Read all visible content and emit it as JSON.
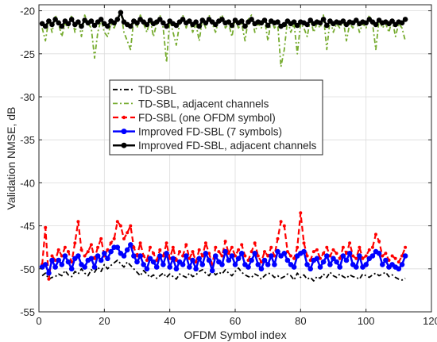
{
  "chart_data": {
    "type": "line",
    "xlabel": "OFDM Symbol index",
    "ylabel": "Validation NMSE, dB",
    "xlim": [
      0,
      120
    ],
    "ylim": [
      -55,
      -19.3
    ],
    "xticks": [
      0,
      20,
      40,
      60,
      80,
      100,
      120
    ],
    "yticks": [
      -55,
      -50,
      -45,
      -40,
      -35,
      -30,
      -25,
      -20
    ],
    "xtick_labels": [
      "0",
      "20",
      "40",
      "60",
      "80",
      "100",
      "120"
    ],
    "ytick_labels": [
      "-55",
      "-50",
      "-45",
      "-40",
      "-35",
      "-30",
      "-25",
      "-20"
    ],
    "grid": true,
    "legend_position": "center",
    "series": [
      {
        "name": "TD-SBL",
        "color": "#000000",
        "style": "dash-dot",
        "marker": "none",
        "x": [
          1,
          2,
          3,
          4,
          5,
          6,
          7,
          8,
          9,
          10,
          11,
          12,
          13,
          14,
          15,
          16,
          17,
          18,
          19,
          20,
          21,
          22,
          23,
          24,
          25,
          26,
          27,
          28,
          29,
          30,
          31,
          32,
          33,
          34,
          35,
          36,
          37,
          38,
          39,
          40,
          41,
          42,
          43,
          44,
          45,
          46,
          47,
          48,
          49,
          50,
          51,
          52,
          53,
          54,
          55,
          56,
          57,
          58,
          59,
          60,
          61,
          62,
          63,
          64,
          65,
          66,
          67,
          68,
          69,
          70,
          71,
          72,
          73,
          74,
          75,
          76,
          77,
          78,
          79,
          80,
          81,
          82,
          83,
          84,
          85,
          86,
          87,
          88,
          89,
          90,
          91,
          92,
          93,
          94,
          95,
          96,
          97,
          98,
          99,
          100,
          101,
          102,
          103,
          104,
          105,
          106,
          107,
          108,
          109,
          110,
          111,
          112
        ],
        "y": [
          -50.8,
          -50.5,
          -51.2,
          -51.0,
          -50.9,
          -50.6,
          -50.8,
          -50.2,
          -50.7,
          -50.9,
          -50.3,
          -50.6,
          -50.0,
          -50.5,
          -50.8,
          -50.1,
          -50.4,
          -49.8,
          -50.3,
          -49.5,
          -50.0,
          -49.6,
          -49.3,
          -49.0,
          -49.4,
          -49.8,
          -49.2,
          -49.6,
          -50.0,
          -50.4,
          -50.8,
          -50.2,
          -50.6,
          -51.0,
          -50.7,
          -51.1,
          -50.8,
          -50.5,
          -51.0,
          -50.6,
          -50.9,
          -51.2,
          -50.6,
          -50.8,
          -51.0,
          -50.5,
          -50.9,
          -50.7,
          -50.3,
          -50.1,
          -50.5,
          -50.8,
          -50.2,
          -50.7,
          -50.4,
          -50.6,
          -50.1,
          -50.5,
          -50.8,
          -50.3,
          -49.9,
          -50.4,
          -50.7,
          -50.9,
          -51.0,
          -50.6,
          -50.8,
          -51.2,
          -50.8,
          -50.5,
          -50.6,
          -51.0,
          -50.8,
          -51.1,
          -50.9,
          -50.6,
          -50.8,
          -51.3,
          -50.5,
          -51.0,
          -50.7,
          -51.2,
          -51.0,
          -51.4,
          -50.9,
          -51.1,
          -50.6,
          -51.0,
          -50.4,
          -50.8,
          -51.0,
          -50.6,
          -50.9,
          -51.1,
          -50.7,
          -50.9,
          -51.0,
          -51.2,
          -50.6,
          -50.8,
          -51.0,
          -50.7,
          -50.5,
          -50.8,
          -50.6,
          -50.4,
          -50.9,
          -50.7,
          -51.0,
          -51.2,
          -51.3,
          -51.1
        ]
      },
      {
        "name": "TD-SBL, adjacent channels",
        "color": "#77ac30",
        "style": "dash-dot",
        "marker": "none",
        "x": [
          1,
          2,
          3,
          4,
          5,
          6,
          7,
          8,
          9,
          10,
          11,
          12,
          13,
          14,
          15,
          16,
          17,
          18,
          19,
          20,
          21,
          22,
          23,
          24,
          25,
          26,
          27,
          28,
          29,
          30,
          31,
          32,
          33,
          34,
          35,
          36,
          37,
          38,
          39,
          40,
          41,
          42,
          43,
          44,
          45,
          46,
          47,
          48,
          49,
          50,
          51,
          52,
          53,
          54,
          55,
          56,
          57,
          58,
          59,
          60,
          61,
          62,
          63,
          64,
          65,
          66,
          67,
          68,
          69,
          70,
          71,
          72,
          73,
          74,
          75,
          76,
          77,
          78,
          79,
          80,
          81,
          82,
          83,
          84,
          85,
          86,
          87,
          88,
          89,
          90,
          91,
          92,
          93,
          94,
          95,
          96,
          97,
          98,
          99,
          100,
          101,
          102,
          103,
          104,
          105,
          106,
          107,
          108,
          109,
          110,
          111,
          112
        ],
        "y": [
          -22.0,
          -23.5,
          -21.0,
          -22.5,
          -20.5,
          -21.5,
          -23.0,
          -21.5,
          -22.0,
          -20.5,
          -22.5,
          -21.0,
          -23.0,
          -20.5,
          -21.5,
          -22.0,
          -25.5,
          -22.5,
          -21.0,
          -22.5,
          -23.0,
          -21.5,
          -22.0,
          -21.0,
          -20.0,
          -22.5,
          -23.5,
          -24.5,
          -21.0,
          -22.0,
          -20.5,
          -21.5,
          -22.5,
          -21.0,
          -23.0,
          -21.5,
          -20.5,
          -22.0,
          -26.0,
          -21.0,
          -22.5,
          -24.0,
          -21.5,
          -20.5,
          -22.0,
          -21.0,
          -22.5,
          -21.5,
          -23.5,
          -21.0,
          -22.0,
          -20.5,
          -21.5,
          -22.5,
          -21.0,
          -20.5,
          -22.0,
          -21.5,
          -23.0,
          -21.0,
          -22.0,
          -21.5,
          -23.5,
          -21.0,
          -20.5,
          -22.5,
          -21.5,
          -22.0,
          -21.0,
          -23.5,
          -21.0,
          -22.0,
          -21.5,
          -26.5,
          -24.5,
          -21.0,
          -22.5,
          -21.5,
          -25.0,
          -21.5,
          -22.0,
          -23.0,
          -21.0,
          -22.5,
          -21.5,
          -22.0,
          -20.5,
          -24.5,
          -21.0,
          -22.5,
          -21.5,
          -22.0,
          -21.0,
          -23.5,
          -21.5,
          -22.0,
          -21.0,
          -22.5,
          -21.5,
          -22.0,
          -20.5,
          -21.5,
          -24.5,
          -21.0,
          -22.0,
          -21.5,
          -22.5,
          -21.0,
          -23.0,
          -21.5,
          -22.0,
          -23.5
        ]
      },
      {
        "name": "FD-SBL (one OFDM symbol)",
        "color": "#ff0000",
        "style": "dashed",
        "marker": "dot",
        "x": [
          1,
          2,
          3,
          4,
          5,
          6,
          7,
          8,
          9,
          10,
          11,
          12,
          13,
          14,
          15,
          16,
          17,
          18,
          19,
          20,
          21,
          22,
          23,
          24,
          25,
          26,
          27,
          28,
          29,
          30,
          31,
          32,
          33,
          34,
          35,
          36,
          37,
          38,
          39,
          40,
          41,
          42,
          43,
          44,
          45,
          46,
          47,
          48,
          49,
          50,
          51,
          52,
          53,
          54,
          55,
          56,
          57,
          58,
          59,
          60,
          61,
          62,
          63,
          64,
          65,
          66,
          67,
          68,
          69,
          70,
          71,
          72,
          73,
          74,
          75,
          76,
          77,
          78,
          79,
          80,
          81,
          82,
          83,
          84,
          85,
          86,
          87,
          88,
          89,
          90,
          91,
          92,
          93,
          94,
          95,
          96,
          97,
          98,
          99,
          100,
          101,
          102,
          103,
          104,
          105,
          106,
          107,
          108,
          109,
          110,
          111,
          112
        ],
        "y": [
          -49.5,
          -45.2,
          -51.2,
          -48.5,
          -49.0,
          -47.8,
          -48.5,
          -47.5,
          -48.0,
          -49.2,
          -47.0,
          -44.5,
          -47.8,
          -48.5,
          -48.0,
          -47.2,
          -48.8,
          -47.5,
          -46.5,
          -48.5,
          -47.8,
          -47.0,
          -46.5,
          -44.5,
          -45.0,
          -46.5,
          -45.8,
          -45.0,
          -47.5,
          -48.5,
          -47.0,
          -48.5,
          -49.0,
          -47.5,
          -48.2,
          -49.0,
          -47.8,
          -48.5,
          -47.0,
          -48.8,
          -47.5,
          -49.0,
          -48.0,
          -48.5,
          -47.2,
          -48.8,
          -48.0,
          -49.2,
          -47.8,
          -48.5,
          -47.0,
          -48.2,
          -49.5,
          -47.5,
          -48.0,
          -48.5,
          -46.8,
          -48.2,
          -47.5,
          -48.5,
          -47.8,
          -47.2,
          -48.5,
          -49.0,
          -48.0,
          -47.0,
          -48.5,
          -49.2,
          -48.0,
          -48.5,
          -47.5,
          -48.5,
          -46.5,
          -44.5,
          -45.0,
          -48.0,
          -48.5,
          -48.8,
          -47.5,
          -43.5,
          -47.0,
          -48.5,
          -49.0,
          -48.0,
          -47.8,
          -48.8,
          -48.2,
          -47.5,
          -48.5,
          -47.8,
          -48.2,
          -48.8,
          -47.5,
          -48.2,
          -47.0,
          -48.5,
          -48.8,
          -47.5,
          -48.8,
          -48.5,
          -47.8,
          -47.5,
          -46.0,
          -46.8,
          -48.5,
          -48.2,
          -49.0,
          -48.5,
          -48.8,
          -49.2,
          -48.5,
          -47.5
        ]
      },
      {
        "name": "Improved FD-SBL (7 symbols)",
        "color": "#0000ff",
        "style": "solid",
        "marker": "circle",
        "x": [
          1,
          2,
          3,
          4,
          5,
          6,
          7,
          8,
          9,
          10,
          11,
          12,
          13,
          14,
          15,
          16,
          17,
          18,
          19,
          20,
          21,
          22,
          23,
          24,
          25,
          26,
          27,
          28,
          29,
          30,
          31,
          32,
          33,
          34,
          35,
          36,
          37,
          38,
          39,
          40,
          41,
          42,
          43,
          44,
          45,
          46,
          47,
          48,
          49,
          50,
          51,
          52,
          53,
          54,
          55,
          56,
          57,
          58,
          59,
          60,
          61,
          62,
          63,
          64,
          65,
          66,
          67,
          68,
          69,
          70,
          71,
          72,
          73,
          74,
          75,
          76,
          77,
          78,
          79,
          80,
          81,
          82,
          83,
          84,
          85,
          86,
          87,
          88,
          89,
          90,
          91,
          92,
          93,
          94,
          95,
          96,
          97,
          98,
          99,
          100,
          101,
          102,
          103,
          104,
          105,
          106,
          107,
          108,
          109,
          110,
          111,
          112
        ],
        "y": [
          -49.8,
          -49.5,
          -50.5,
          -49.0,
          -49.8,
          -49.0,
          -49.5,
          -48.5,
          -49.2,
          -50.0,
          -48.8,
          -48.5,
          -49.5,
          -49.8,
          -49.0,
          -48.8,
          -49.8,
          -48.5,
          -49.0,
          -48.2,
          -48.8,
          -48.0,
          -47.5,
          -47.5,
          -48.2,
          -48.5,
          -47.8,
          -47.2,
          -48.5,
          -49.2,
          -48.5,
          -49.5,
          -50.0,
          -48.8,
          -49.2,
          -49.8,
          -48.5,
          -49.5,
          -48.2,
          -49.8,
          -48.8,
          -50.0,
          -49.2,
          -49.5,
          -48.5,
          -49.8,
          -49.0,
          -50.0,
          -48.8,
          -49.5,
          -48.2,
          -49.0,
          -50.2,
          -48.5,
          -49.2,
          -49.5,
          -48.0,
          -49.0,
          -48.5,
          -49.5,
          -48.8,
          -48.2,
          -49.5,
          -49.8,
          -49.0,
          -48.2,
          -49.5,
          -50.0,
          -49.0,
          -49.5,
          -48.5,
          -49.5,
          -48.0,
          -48.5,
          -48.2,
          -49.0,
          -49.5,
          -49.8,
          -48.5,
          -48.2,
          -48.0,
          -49.5,
          -50.0,
          -49.0,
          -48.8,
          -49.8,
          -49.2,
          -48.5,
          -49.5,
          -48.8,
          -49.2,
          -49.8,
          -48.5,
          -49.0,
          -48.2,
          -49.5,
          -49.8,
          -48.5,
          -49.8,
          -49.5,
          -48.8,
          -48.5,
          -48.0,
          -48.2,
          -49.5,
          -49.0,
          -49.8,
          -49.5,
          -49.8,
          -50.0,
          -49.5,
          -48.5
        ]
      },
      {
        "name": "Improved FD-SBL, adjacent channels",
        "color": "#000000",
        "style": "solid",
        "marker": "circle",
        "x": [
          1,
          2,
          3,
          4,
          5,
          6,
          7,
          8,
          9,
          10,
          11,
          12,
          13,
          14,
          15,
          16,
          17,
          18,
          19,
          20,
          21,
          22,
          23,
          24,
          25,
          26,
          27,
          28,
          29,
          30,
          31,
          32,
          33,
          34,
          35,
          36,
          37,
          38,
          39,
          40,
          41,
          42,
          43,
          44,
          45,
          46,
          47,
          48,
          49,
          50,
          51,
          52,
          53,
          54,
          55,
          56,
          57,
          58,
          59,
          60,
          61,
          62,
          63,
          64,
          65,
          66,
          67,
          68,
          69,
          70,
          71,
          72,
          73,
          74,
          75,
          76,
          77,
          78,
          79,
          80,
          81,
          82,
          83,
          84,
          85,
          86,
          87,
          88,
          89,
          90,
          91,
          92,
          93,
          94,
          95,
          96,
          97,
          98,
          99,
          100,
          101,
          102,
          103,
          104,
          105,
          106,
          107,
          108,
          109,
          110,
          111,
          112
        ],
        "y": [
          -21.5,
          -21.8,
          -21.2,
          -21.6,
          -21.0,
          -21.4,
          -21.8,
          -21.2,
          -21.5,
          -21.0,
          -21.6,
          -21.3,
          -21.8,
          -21.1,
          -21.4,
          -21.2,
          -21.7,
          -21.3,
          -21.0,
          -21.5,
          -21.8,
          -21.2,
          -21.4,
          -21.0,
          -20.2,
          -21.3,
          -21.6,
          -21.8,
          -21.2,
          -21.4,
          -21.0,
          -21.3,
          -21.6,
          -21.1,
          -21.5,
          -21.3,
          -21.0,
          -21.4,
          -21.8,
          -21.2,
          -21.5,
          -21.7,
          -21.3,
          -21.0,
          -21.4,
          -21.2,
          -21.6,
          -21.3,
          -21.8,
          -21.1,
          -21.4,
          -21.0,
          -21.3,
          -21.6,
          -21.2,
          -21.0,
          -21.4,
          -21.3,
          -21.7,
          -21.1,
          -21.4,
          -21.2,
          -21.8,
          -21.3,
          -21.0,
          -21.5,
          -21.3,
          -21.4,
          -21.1,
          -21.7,
          -21.2,
          -21.4,
          -21.3,
          -21.8,
          -21.6,
          -21.2,
          -21.5,
          -21.3,
          -21.7,
          -21.3,
          -21.4,
          -21.6,
          -21.1,
          -21.5,
          -21.3,
          -21.4,
          -21.0,
          -21.7,
          -21.2,
          -21.5,
          -21.3,
          -21.4,
          -21.2,
          -21.6,
          -21.3,
          -21.4,
          -21.1,
          -21.5,
          -21.3,
          -21.4,
          -21.0,
          -21.3,
          -21.6,
          -21.1,
          -21.4,
          -21.3,
          -21.5,
          -21.2,
          -21.6,
          -21.3,
          -21.4,
          -21.0
        ]
      }
    ]
  }
}
